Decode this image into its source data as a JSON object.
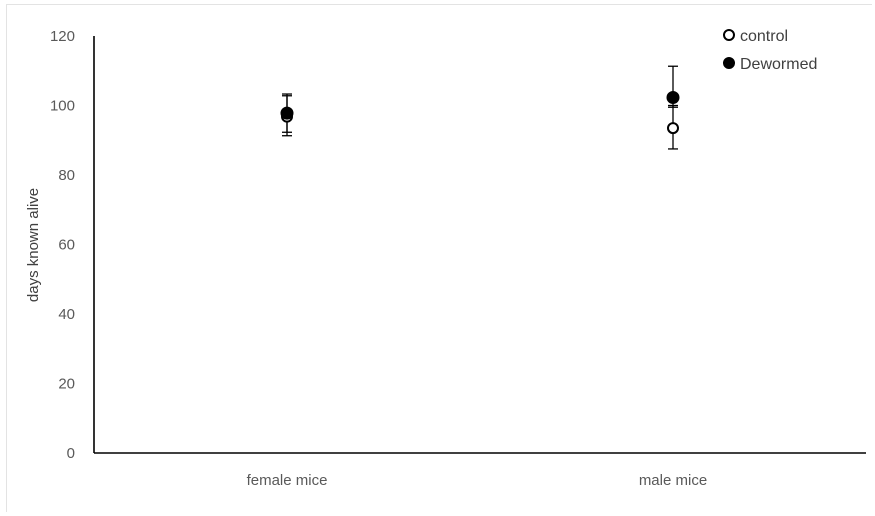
{
  "chart_data": {
    "type": "scatter",
    "categories": [
      "female mice",
      "male mice"
    ],
    "ylabel": "days known alive",
    "xlabel": "",
    "ylim": [
      0,
      120
    ],
    "yticks": [
      0,
      20,
      40,
      60,
      80,
      100,
      120
    ],
    "grid": false,
    "legend_position": "top-right",
    "series": [
      {
        "name": "control",
        "marker": "open-circle",
        "color": "#000000",
        "values": [
          96.8,
          93.5
        ],
        "error_low": [
          5.5,
          6.0
        ],
        "error_high": [
          6.5,
          6.5
        ]
      },
      {
        "name": "Dewormed",
        "marker": "filled-circle",
        "color": "#000000",
        "values": [
          97.8,
          102.3
        ],
        "error_low": [
          5.5,
          2.8
        ],
        "error_high": [
          5.0,
          9.0
        ]
      }
    ]
  }
}
